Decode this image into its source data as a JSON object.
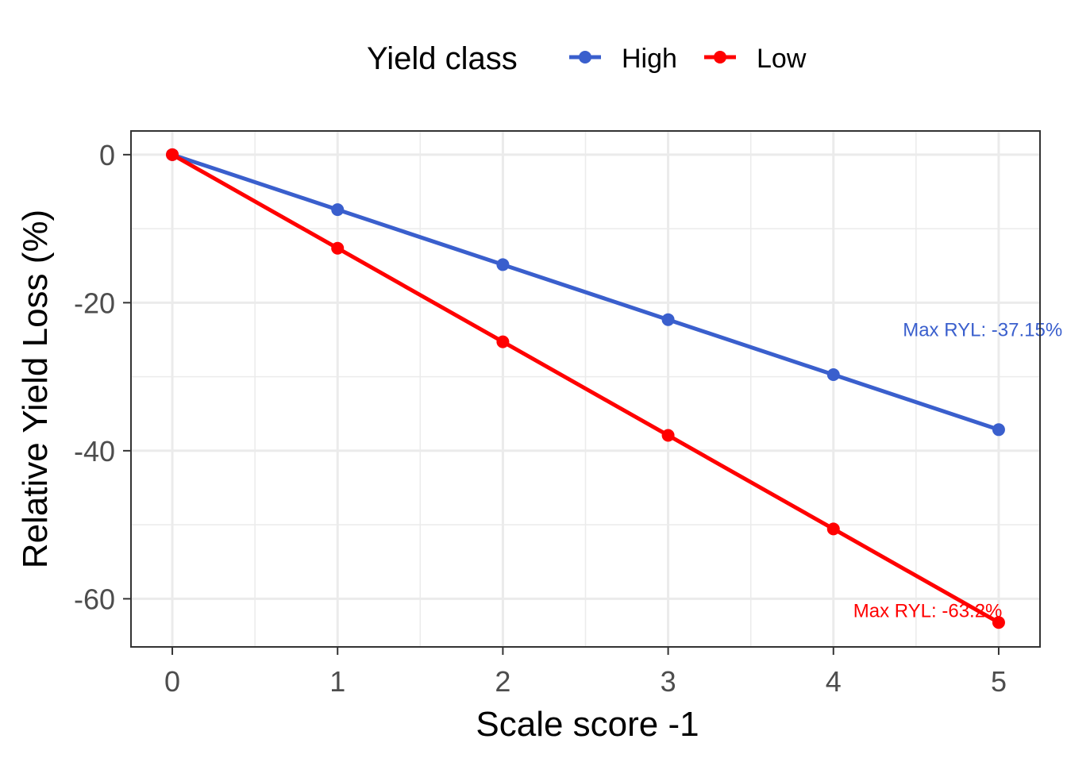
{
  "chart_data": {
    "type": "line",
    "xlabel": "Scale score -1",
    "ylabel": "Relative Yield Loss (%)",
    "xlim": [
      -0.25,
      5.25
    ],
    "ylim": [
      -66.5,
      3.2
    ],
    "x_ticks": [
      0,
      1,
      2,
      3,
      4,
      5
    ],
    "x_tick_labels": [
      "0",
      "1",
      "2",
      "3",
      "4",
      "5"
    ],
    "y_ticks": [
      0,
      -20,
      -40,
      -60
    ],
    "y_tick_labels": [
      "0",
      "-20",
      "-40",
      "-60"
    ],
    "grid": true,
    "legend": {
      "title": "Yield class",
      "position": "top",
      "entries": [
        "High",
        "Low"
      ]
    },
    "series": [
      {
        "name": "High",
        "color": "#3a5fcd",
        "x": [
          0,
          1,
          2,
          3,
          4,
          5
        ],
        "y": [
          0,
          -7.43,
          -14.86,
          -22.29,
          -29.72,
          -37.15
        ]
      },
      {
        "name": "Low",
        "color": "#ff0000",
        "x": [
          0,
          1,
          2,
          3,
          4,
          5
        ],
        "y": [
          0,
          -12.64,
          -25.28,
          -37.92,
          -50.56,
          -63.2
        ]
      }
    ],
    "annotations": [
      {
        "text": "Max RYL: -37.15%",
        "series": "High",
        "x": 4.42,
        "y": -24.5,
        "color": "#3a5fcd"
      },
      {
        "text": "Max RYL: -63.2%",
        "series": "Low",
        "x": 4.12,
        "y": -62.5,
        "color": "#ff0000"
      }
    ]
  }
}
